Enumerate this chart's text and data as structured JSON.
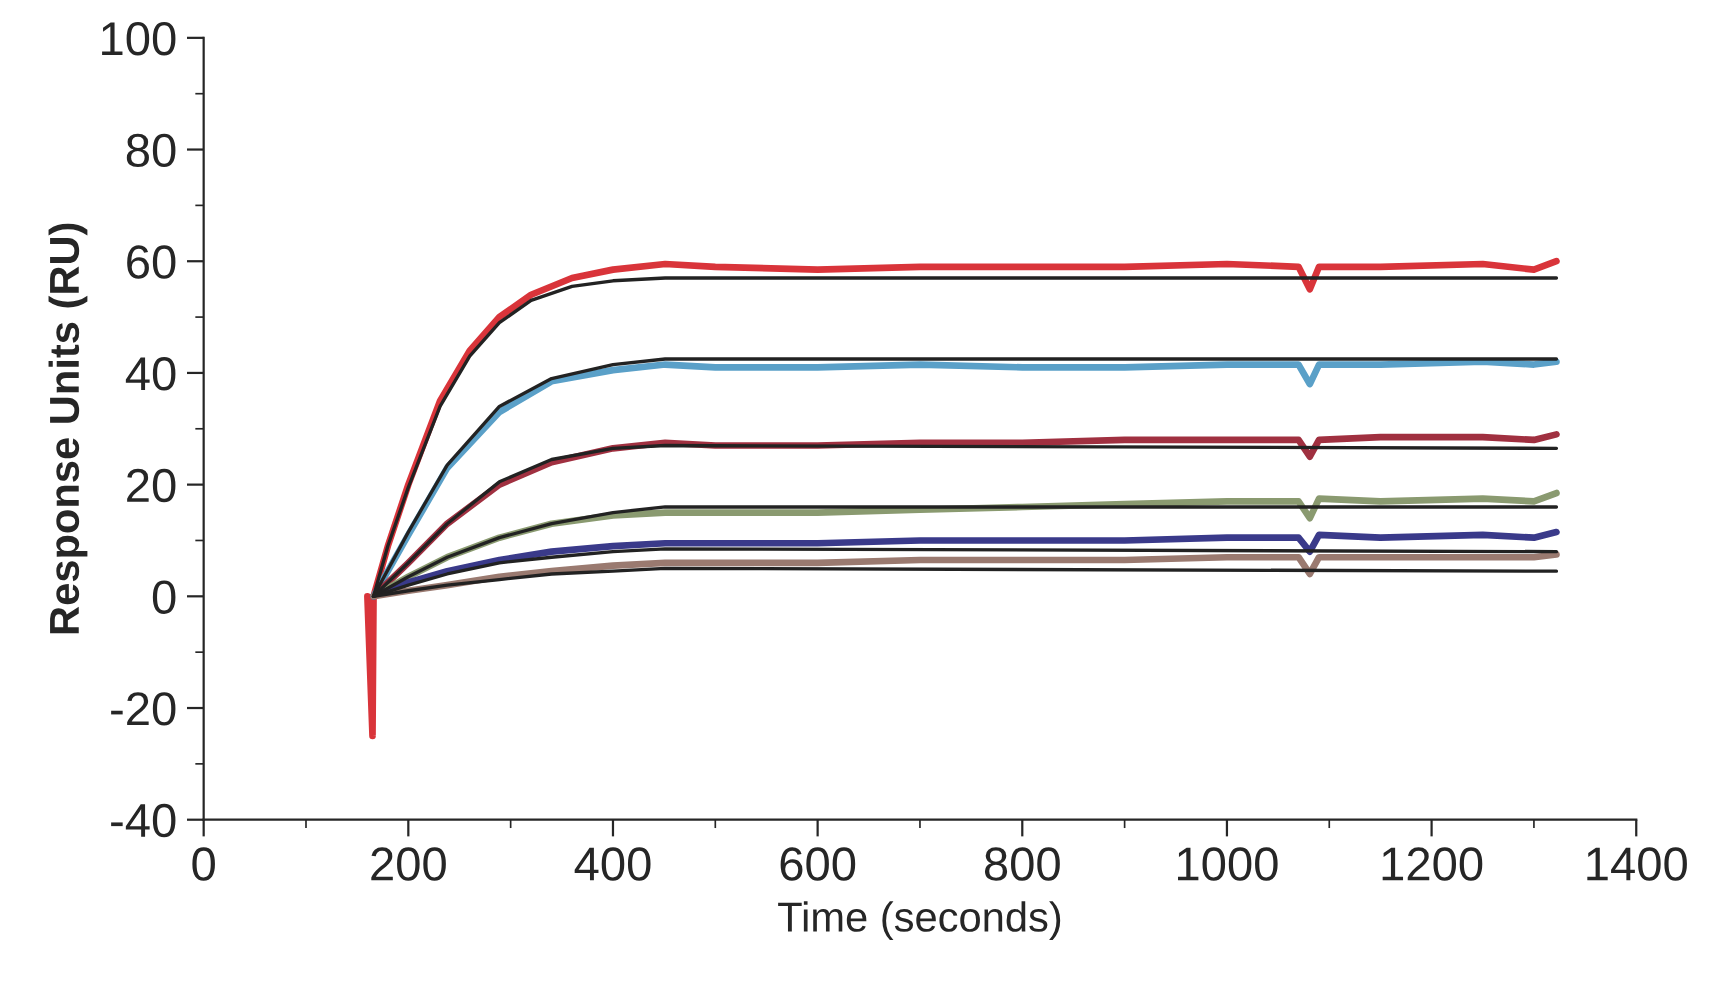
{
  "chart_data": {
    "type": "line",
    "xlabel": "Time (seconds)",
    "ylabel": "Response Units (RU)",
    "xlim": [
      0,
      1400
    ],
    "ylim": [
      -40,
      100
    ],
    "xticks": [
      0,
      200,
      400,
      600,
      800,
      1000,
      1200,
      1400
    ],
    "yticks": [
      -40,
      -20,
      0,
      20,
      40,
      60,
      80,
      100
    ],
    "grid": false,
    "legend": false,
    "line_style": "solid",
    "series": [
      {
        "color": "#d9343a",
        "x": [
          160,
          165,
          166,
          180,
          200,
          231,
          260,
          289,
          320,
          360,
          400,
          451,
          500,
          600,
          700,
          800,
          900,
          1000,
          1070,
          1081,
          1090,
          1150,
          1250,
          1300,
          1322
        ],
        "values": [
          0,
          -25,
          0,
          9,
          20,
          35,
          44,
          50,
          54,
          57,
          58.5,
          59.5,
          59,
          58.5,
          59,
          59,
          59,
          59.5,
          59,
          55,
          59,
          59,
          59.5,
          58.5,
          60
        ]
      },
      {
        "color": "#5aa0c8",
        "x": [
          166,
          200,
          238,
          289,
          340,
          400,
          451,
          500,
          600,
          700,
          800,
          900,
          1000,
          1070,
          1081,
          1090,
          1150,
          1250,
          1300,
          1322
        ],
        "values": [
          0,
          11,
          23,
          33,
          38.5,
          40.5,
          41.5,
          41,
          41,
          41.5,
          41,
          41,
          41.5,
          41.5,
          38,
          41.5,
          41.5,
          42,
          41.5,
          42
        ]
      },
      {
        "color": "#a03040",
        "x": [
          166,
          200,
          238,
          289,
          340,
          400,
          451,
          500,
          600,
          700,
          800,
          900,
          1000,
          1070,
          1081,
          1090,
          1150,
          1250,
          1300,
          1322
        ],
        "values": [
          0,
          6,
          13,
          20,
          24,
          26.5,
          27.5,
          27,
          27,
          27.5,
          27.5,
          28,
          28,
          28,
          25,
          28,
          28.5,
          28.5,
          28,
          29
        ]
      },
      {
        "color": "#8a9a70",
        "x": [
          166,
          200,
          238,
          289,
          340,
          400,
          451,
          500,
          600,
          700,
          800,
          900,
          1000,
          1070,
          1081,
          1090,
          1150,
          1250,
          1300,
          1322
        ],
        "values": [
          0,
          3.5,
          7,
          10.5,
          13,
          14.5,
          15,
          15,
          15,
          15.5,
          16,
          16.5,
          17,
          17,
          14,
          17.5,
          17,
          17.5,
          17,
          18.5
        ]
      },
      {
        "color": "#3a3a8a",
        "x": [
          166,
          200,
          238,
          289,
          340,
          400,
          451,
          500,
          600,
          700,
          800,
          900,
          1000,
          1070,
          1081,
          1090,
          1150,
          1250,
          1300,
          1322
        ],
        "values": [
          0,
          2.5,
          4.5,
          6.5,
          8,
          9,
          9.5,
          9.5,
          9.5,
          10,
          10,
          10,
          10.5,
          10.5,
          8,
          11,
          10.5,
          11,
          10.5,
          11.5
        ]
      },
      {
        "color": "#9a7a70",
        "x": [
          166,
          200,
          238,
          289,
          340,
          400,
          451,
          500,
          600,
          700,
          800,
          900,
          1000,
          1070,
          1081,
          1090,
          1150,
          1250,
          1300,
          1322
        ],
        "values": [
          0,
          1,
          2,
          3.5,
          4.5,
          5.5,
          6,
          6,
          6,
          6.5,
          6.5,
          6.5,
          7,
          7,
          4,
          7,
          7,
          7,
          7,
          7.5
        ]
      },
      {
        "color": "#222222",
        "x": [
          166,
          180,
          200,
          231,
          260,
          289,
          320,
          360,
          400,
          451,
          1322
        ],
        "values": [
          0,
          9,
          19.5,
          34,
          43,
          49,
          53,
          55.5,
          56.5,
          57,
          57
        ]
      },
      {
        "color": "#222222",
        "x": [
          166,
          200,
          238,
          289,
          340,
          400,
          451,
          1322
        ],
        "values": [
          0,
          11.5,
          23.5,
          34,
          39,
          41.5,
          42.5,
          42.5
        ]
      },
      {
        "color": "#222222",
        "x": [
          166,
          200,
          238,
          289,
          340,
          400,
          451,
          1322
        ],
        "values": [
          0,
          6,
          13,
          20.5,
          24.5,
          26.5,
          27,
          26.5
        ]
      },
      {
        "color": "#222222",
        "x": [
          166,
          200,
          238,
          289,
          340,
          400,
          451,
          1322
        ],
        "values": [
          0,
          3.5,
          7,
          10.5,
          13,
          15,
          16,
          16
        ]
      },
      {
        "color": "#222222",
        "x": [
          166,
          200,
          238,
          289,
          340,
          400,
          451,
          1322
        ],
        "values": [
          0,
          2,
          4,
          6,
          7,
          8,
          8.5,
          8
        ]
      },
      {
        "color": "#222222",
        "x": [
          166,
          200,
          238,
          289,
          340,
          400,
          451,
          1322
        ],
        "values": [
          0,
          1,
          2,
          3,
          4,
          4.5,
          5,
          4.5
        ]
      }
    ]
  }
}
